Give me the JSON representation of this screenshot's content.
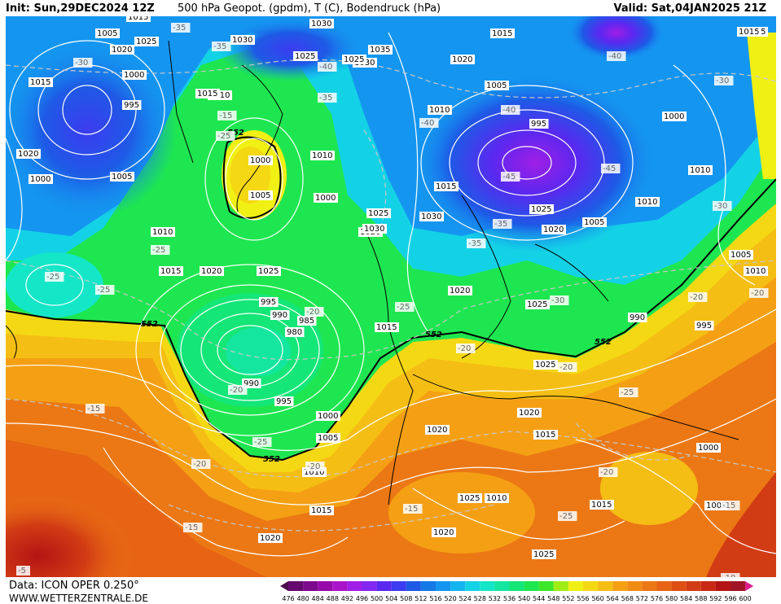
{
  "header": {
    "init": "Init: Sun,29DEC2024 12Z",
    "title": "500 hPa Geopot. (gpdm), T (C), Bodendruck (hPa)",
    "valid": "Valid: Sat,04JAN2025 21Z"
  },
  "footer": {
    "source": "Data: ICON OPER 0.250°",
    "site": "WWW.WETTERZENTRALE.DE"
  },
  "legend": {
    "ticks": [
      "476",
      "480",
      "484",
      "488",
      "492",
      "496",
      "500",
      "504",
      "508",
      "512",
      "516",
      "520",
      "524",
      "528",
      "532",
      "536",
      "540",
      "544",
      "548",
      "552",
      "556",
      "560",
      "564",
      "568",
      "572",
      "576",
      "580",
      "584",
      "588",
      "592",
      "596",
      "600"
    ],
    "colors": [
      "#4d0c4d",
      "#640a6e",
      "#7d0a8c",
      "#960aaa",
      "#aa14c8",
      "#a01ee6",
      "#8228f0",
      "#5a28f0",
      "#3c3cf0",
      "#1e5ae6",
      "#1478e6",
      "#1496f0",
      "#14b4f0",
      "#14d2e6",
      "#14e6c8",
      "#14e6a0",
      "#14e678",
      "#1ee650",
      "#3ce628",
      "#a0ec14",
      "#f0f014",
      "#f5d814",
      "#f5be14",
      "#f5a014",
      "#f08c14",
      "#eb7814",
      "#e66414",
      "#dc5014",
      "#d23c14",
      "#c82814",
      "#b41414",
      "#a01428",
      "#dc1e8c"
    ]
  },
  "map_labels": {
    "contour_552": [
      "552",
      "552",
      "552",
      "552",
      "552"
    ],
    "isobars": [
      "1035",
      "1030",
      "1025",
      "1020",
      "1015",
      "1010",
      "1000",
      "995",
      "1030",
      "1025",
      "1030",
      "1035",
      "1030",
      "1025",
      "1020",
      "1015",
      "1025",
      "1015",
      "1010",
      "1005",
      "995",
      "1000",
      "1005",
      "1010",
      "1000",
      "1000",
      "1005",
      "1010",
      "1015",
      "1020",
      "1025",
      "1020",
      "1025",
      "1030",
      "1030",
      "1015",
      "1025",
      "1020",
      "1005",
      "1010",
      "1015",
      "1010",
      "1005",
      "1000",
      "995",
      "990",
      "985",
      "980",
      "990",
      "995",
      "1000",
      "1005",
      "1010",
      "1015",
      "1020",
      "1015",
      "1020",
      "1025",
      "1025",
      "1020",
      "1015",
      "1010",
      "1020",
      "1025",
      "1025",
      "1020",
      "1015",
      "990",
      "995",
      "1000",
      "1005",
      "1010",
      "1020",
      "1015",
      "1005"
    ],
    "temps": [
      "-35",
      "-35",
      "-30",
      "-40",
      "-35",
      "-40",
      "-40",
      "-45",
      "-45",
      "-40",
      "-35",
      "-35",
      "-30",
      "-30",
      "-25",
      "-25",
      "-25",
      "-20",
      "-25",
      "-20",
      "-20",
      "-15",
      "-20",
      "-25",
      "-20",
      "-20",
      "-25",
      "-15",
      "-15",
      "-20",
      "-15",
      "-10",
      "-30",
      "-20",
      "-20",
      "-25",
      "-15",
      "-5",
      "-25"
    ]
  }
}
